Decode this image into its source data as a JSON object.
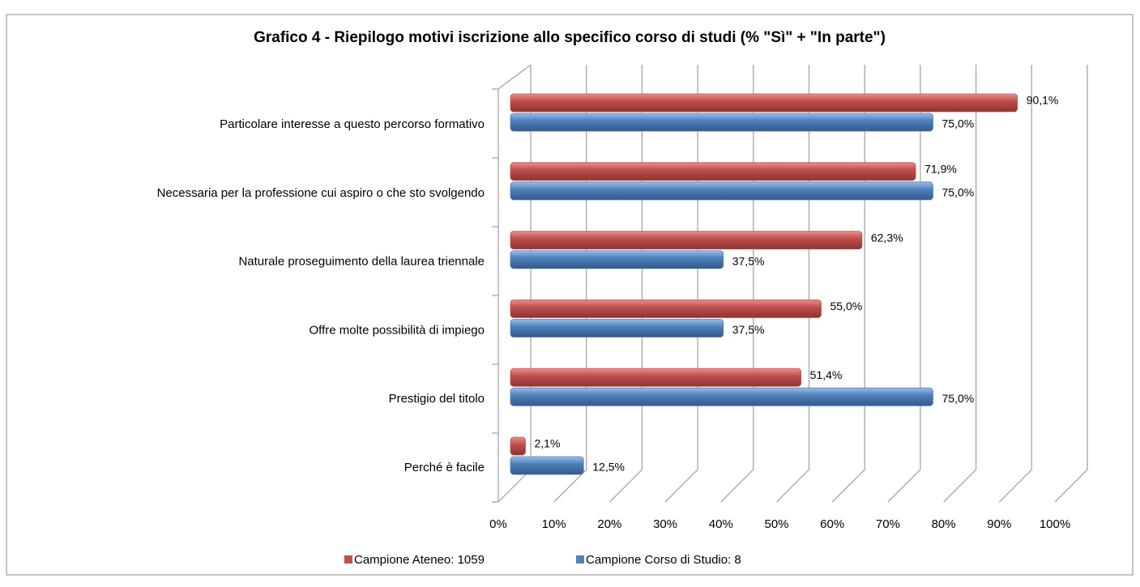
{
  "chart_data": {
    "type": "bar",
    "orientation": "horizontal",
    "title": "Grafico 4 - Riepilogo motivi iscrizione allo specifico corso di studi (% \"Sì\" + \"In parte\")",
    "categories": [
      "Particolare interesse a questo percorso formativo",
      "Necessaria per la professione cui aspiro o che sto svolgendo",
      "Naturale proseguimento della laurea triennale",
      "Offre molte possibilità di impiego",
      "Prestigio del titolo",
      "Perché è facile"
    ],
    "series": [
      {
        "name": "Campione Ateneo: 1059",
        "color": "#c0504d",
        "values": [
          90.1,
          71.9,
          62.3,
          55.0,
          51.4,
          2.1
        ],
        "value_labels": [
          "90,1%",
          "71,9%",
          "62,3%",
          "55,0%",
          "51,4%",
          "2,1%"
        ]
      },
      {
        "name": "Campione Corso di Studio: 8",
        "color": "#4f81bd",
        "values": [
          75.0,
          75.0,
          37.5,
          37.5,
          75.0,
          12.5
        ],
        "value_labels": [
          "75,0%",
          "75,0%",
          "37,5%",
          "37,5%",
          "75,0%",
          "12,5%"
        ]
      }
    ],
    "xlim": [
      0,
      100
    ],
    "xticks": [
      {
        "value": 0,
        "label": "0%"
      },
      {
        "value": 10,
        "label": "10%"
      },
      {
        "value": 20,
        "label": "20%"
      },
      {
        "value": 30,
        "label": "30%"
      },
      {
        "value": 40,
        "label": "40%"
      },
      {
        "value": 50,
        "label": "50%"
      },
      {
        "value": 60,
        "label": "60%"
      },
      {
        "value": 70,
        "label": "70%"
      },
      {
        "value": 80,
        "label": "80%"
      },
      {
        "value": 90,
        "label": "90%"
      },
      {
        "value": 100,
        "label": "100%"
      }
    ],
    "grid": true,
    "legend": "bottom"
  }
}
